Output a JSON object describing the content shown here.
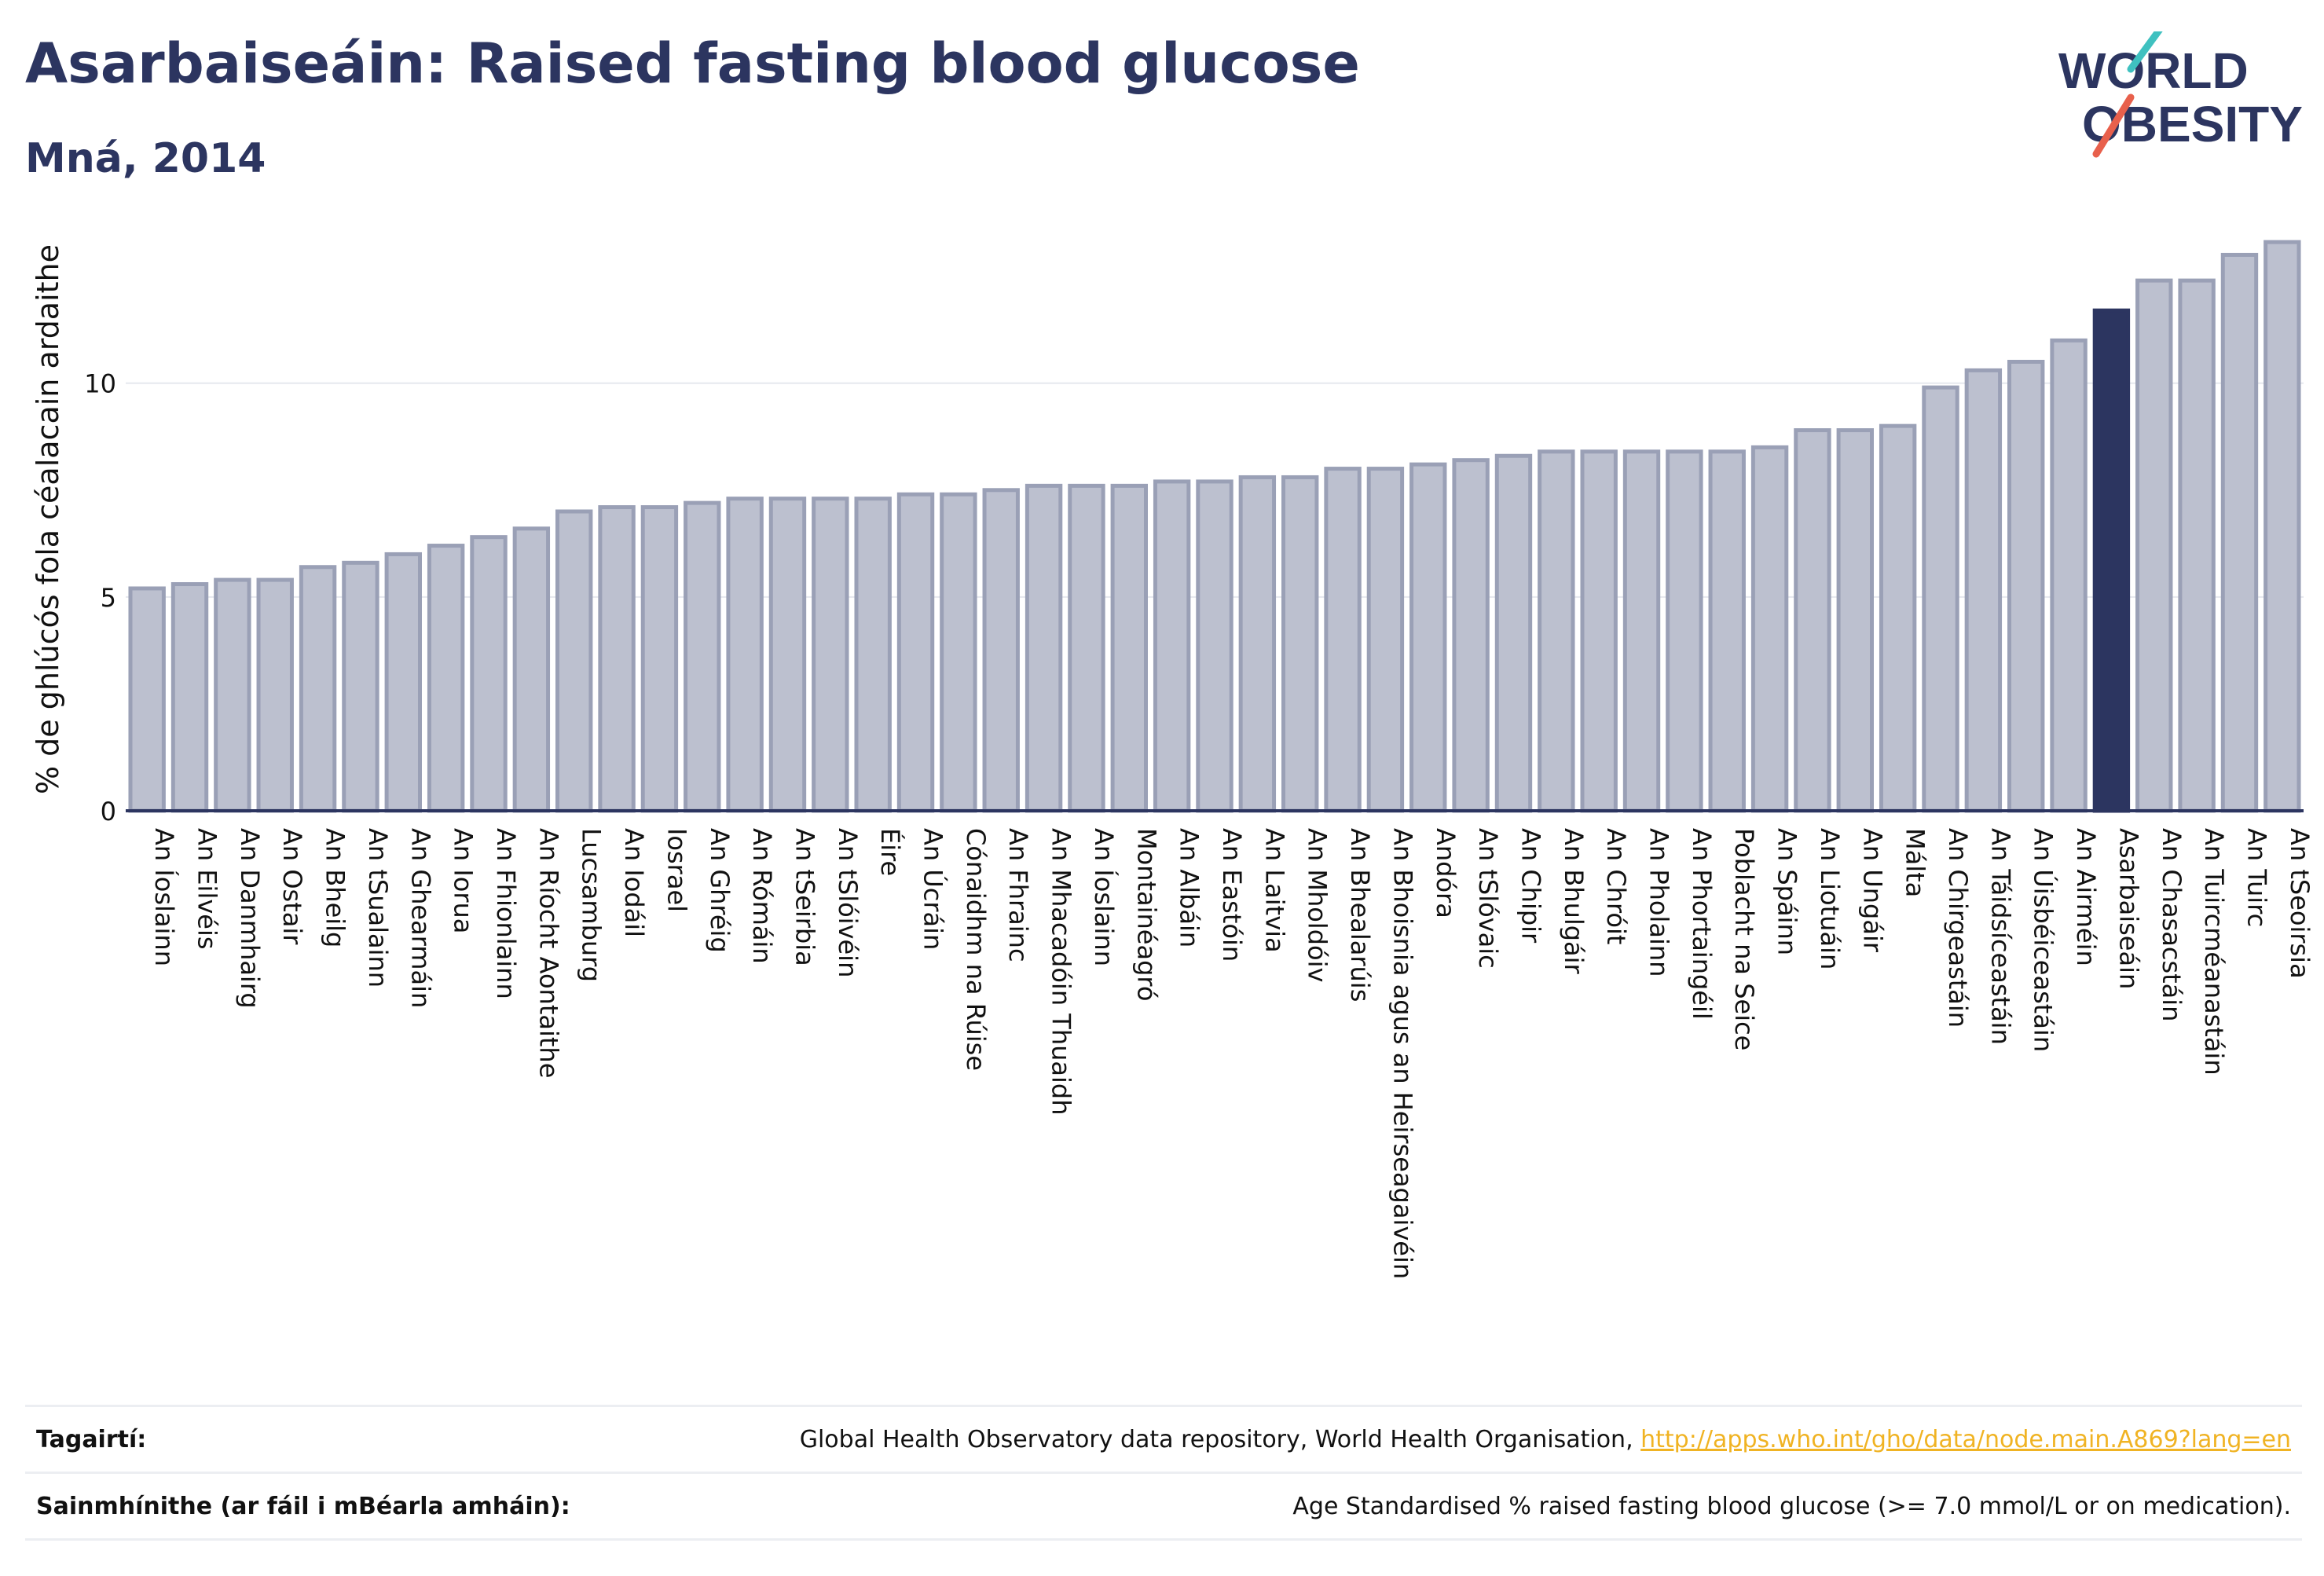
{
  "header": {
    "title": "Asarbaiseáin: Raised fasting blood glucose",
    "subtitle": "Mná, 2014"
  },
  "logo": {
    "line1": "WORLD",
    "line2": "OBESITY",
    "colors": {
      "text": "#2c3560",
      "slash_teal": "#3fc1c0",
      "slash_red": "#e8604c"
    }
  },
  "colors": {
    "bar_fill": "#bcc0cf",
    "bar_stroke": "#9aa0b6",
    "highlight_fill": "#2c3560",
    "axis": "#2c3560",
    "grid": "#e6e8ee"
  },
  "chart_data": {
    "type": "bar",
    "title": "Asarbaiseáin: Raised fasting blood glucose",
    "subtitle": "Mná, 2014",
    "xlabel": "",
    "ylabel": "% de ghlúcós fola céalacain ardaithe",
    "ylim": [
      0,
      14
    ],
    "yticks": [
      0,
      5,
      10
    ],
    "grid": true,
    "highlight": "Asarbaiseáin",
    "categories": [
      "An Íoslainn",
      "An Eilvéis",
      "An Danmhairg",
      "An Ostair",
      "An Bheilg",
      "An tSualainn",
      "An Ghearmáin",
      "An Iorua",
      "An Fhionlainn",
      "An Ríocht Aontaithe",
      "Lucsamburg",
      "An Iodáil",
      "Iosrael",
      "An Ghréig",
      "An Rómáin",
      "An tSeirbia",
      "An tSlóivéin",
      "Éire",
      "An Úcráin",
      "Cónaidhm na Rúise",
      "An Fhrainc",
      "An Mhacadóin Thuaidh",
      "An Íoslainn",
      "Montainéagró",
      "An Albáin",
      "An Eastóin",
      "An Laitvia",
      "An Mholdóiv",
      "An Bhealarúis",
      "An Bhoisnia agus an Heirseagaivéin",
      "Andóra",
      "An tSlóvaic",
      "An Chipir",
      "An Bhulgáir",
      "An Chróit",
      "An Pholainn",
      "An Phortaingéil",
      "Poblacht na Seice",
      "An Spáinn",
      "An Liotuáin",
      "An Ungáir",
      "Málta",
      "An Chirgeastáin",
      "An Táidsíceastáin",
      "An Úisbéiceastáin",
      "An Airméin",
      "Asarbaiseáin",
      "An Chasacstáin",
      "An Tuircméanastáin",
      "An Tuirc",
      "An tSeoirsia"
    ],
    "values": [
      5.2,
      5.3,
      5.4,
      5.4,
      5.7,
      5.8,
      6.0,
      6.2,
      6.4,
      6.6,
      7.0,
      7.1,
      7.1,
      7.2,
      7.3,
      7.3,
      7.3,
      7.3,
      7.4,
      7.4,
      7.5,
      7.6,
      7.6,
      7.6,
      7.7,
      7.7,
      7.8,
      7.8,
      8.0,
      8.0,
      8.1,
      8.2,
      8.3,
      8.4,
      8.4,
      8.4,
      8.4,
      8.4,
      8.5,
      8.9,
      8.9,
      9.0,
      9.9,
      10.3,
      10.5,
      11.0,
      11.7,
      12.4,
      12.4,
      13.0,
      13.3
    ]
  },
  "footer": {
    "references_label": "Tagairtí:",
    "references_text": "Global Health Observatory data repository, World Health Organisation, ",
    "references_link": "http://apps.who.int/gho/data/node.main.A869?lang=en",
    "definitions_label": "Sainmhínithe (ar fáil i mBéarla amháin):",
    "definitions_text": "Age Standardised % raised fasting blood glucose (>= 7.0 mmol/L or on medication)."
  }
}
